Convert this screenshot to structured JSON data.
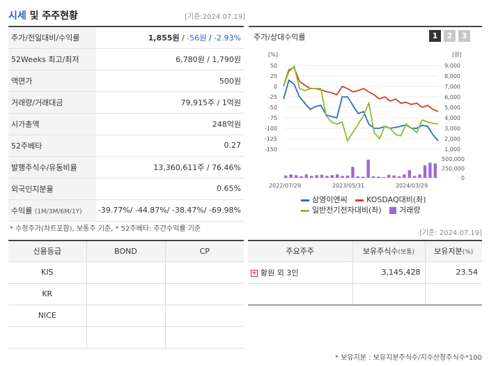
{
  "header": {
    "title_accent": "시세",
    "title_rest": " 및 주주현황",
    "date": "[기준:2024.07.19]"
  },
  "quote": {
    "rows": [
      {
        "label": "주가/전일대비/수익률",
        "price": "1,855원",
        "sep1": " / ",
        "change": "-56원",
        "sep2": " / ",
        "rate": "-2.93%"
      },
      {
        "label": "52Weeks 최고/최저",
        "value": "6,780원 / 1,790원"
      },
      {
        "label": "액면가",
        "value": "500원"
      },
      {
        "label": "거래량/거래대금",
        "value": "79,915주 / 1억원"
      },
      {
        "label": "시가총액",
        "value": "248억원"
      },
      {
        "label": "52주베타",
        "value": "0.27"
      },
      {
        "label": "발행주식수/유동비율",
        "value": "13,360,611주 / 76.46%"
      },
      {
        "label": "외국인지분율",
        "value": "0.65%"
      },
      {
        "label": "수익률",
        "label_sub": "(1M/3M/6M/1Y)",
        "value": "-39.77%/ -44.87%/ -38.47%/ -69.98%"
      }
    ],
    "footnote": "* 수정주가(차트포함), 보통주 기준, * 52주베타: 주간수익률 기준"
  },
  "chart_panel": {
    "title": "주가/상대수익률",
    "tabs": [
      "1",
      "2",
      "3"
    ]
  },
  "chart_data": {
    "type": "line",
    "left_unit": "[%]",
    "right_unit": "[원]",
    "left_ticks": [
      "50",
      "25",
      "0",
      "-25",
      "-50",
      "-75",
      "-100",
      "-125",
      "-150"
    ],
    "right_ticks": [
      "9,000",
      "8,000",
      "7,000",
      "6,000",
      "5,000",
      "4,000",
      "3,000",
      "2,000",
      "1,000"
    ],
    "volume_ticks": [
      "500,000",
      "250,000",
      "0"
    ],
    "x_ticks": [
      "2022/07/29",
      "2023/05/31",
      "2024/03/29"
    ],
    "ylim": [
      -150,
      50
    ],
    "volume_max": 500000,
    "series": [
      {
        "name": "삼영이엔씨",
        "color": "#2b6cc4",
        "values": [
          -30,
          15,
          5,
          -25,
          -40,
          -55,
          -48,
          -45,
          -68,
          -72,
          -75,
          -25,
          -25,
          -45,
          -65,
          -60,
          -90,
          -100,
          -100,
          -96,
          -100,
          -98,
          -95,
          -92,
          -100,
          -100,
          -93,
          -95,
          -115,
          -130
        ]
      },
      {
        "name": "KOSDAQ대비(좌)",
        "color": "#c84628",
        "values": [
          0,
          40,
          45,
          12,
          3,
          -5,
          -5,
          -8,
          -12,
          -15,
          -20,
          0,
          -5,
          -13,
          -10,
          -5,
          -13,
          -20,
          -30,
          -25,
          -35,
          -30,
          -40,
          -38,
          -43,
          -40,
          -50,
          -45,
          -55,
          -60
        ]
      },
      {
        "name": "일반전기전자대비(좌)",
        "color": "#8cbc2c",
        "values": [
          0,
          35,
          48,
          -5,
          -10,
          -5,
          -5,
          -5,
          -70,
          -85,
          -90,
          -85,
          -130,
          -110,
          -90,
          -70,
          -40,
          -110,
          -125,
          -95,
          -100,
          -115,
          -118,
          -90,
          -100,
          -110,
          -80,
          -85,
          -88,
          -90
        ]
      }
    ],
    "volume": [
      60000,
      90000,
      70000,
      40000,
      90000,
      50000,
      70000,
      80000,
      50000,
      70000,
      90000,
      50000,
      60000,
      290000,
      40000,
      30000,
      480000,
      40000,
      30000,
      20000,
      80000,
      60000,
      40000,
      90000,
      200000,
      50000,
      90000,
      330000,
      400000,
      380000
    ],
    "legend": [
      {
        "name": "삼영이엔씨",
        "color": "#2b6cc4",
        "kind": "line"
      },
      {
        "name": "KOSDAQ대비(좌)",
        "color": "#c84628",
        "kind": "line"
      },
      {
        "name": "일반전기전자대비(좌)",
        "color": "#8cbc2c",
        "kind": "line"
      },
      {
        "name": "거래량",
        "color": "#9b6ad0",
        "kind": "box"
      }
    ]
  },
  "date2": "[기준: 2024.07.19]",
  "credit": {
    "headers": [
      "신용등급",
      "BOND",
      "CP"
    ],
    "rows": [
      "KIS",
      "KR",
      "NICE",
      ""
    ]
  },
  "holders": {
    "headers": [
      "주요주주",
      "보유주식수",
      "(보통)",
      "보유지분",
      "(%)"
    ],
    "rows": [
      {
        "name": "황원 외 3인",
        "shares": "3,145,428",
        "pct": "23.54"
      }
    ],
    "footnote": "* 보유지분 : 보유지분주식수/지수산정주식수*100"
  }
}
